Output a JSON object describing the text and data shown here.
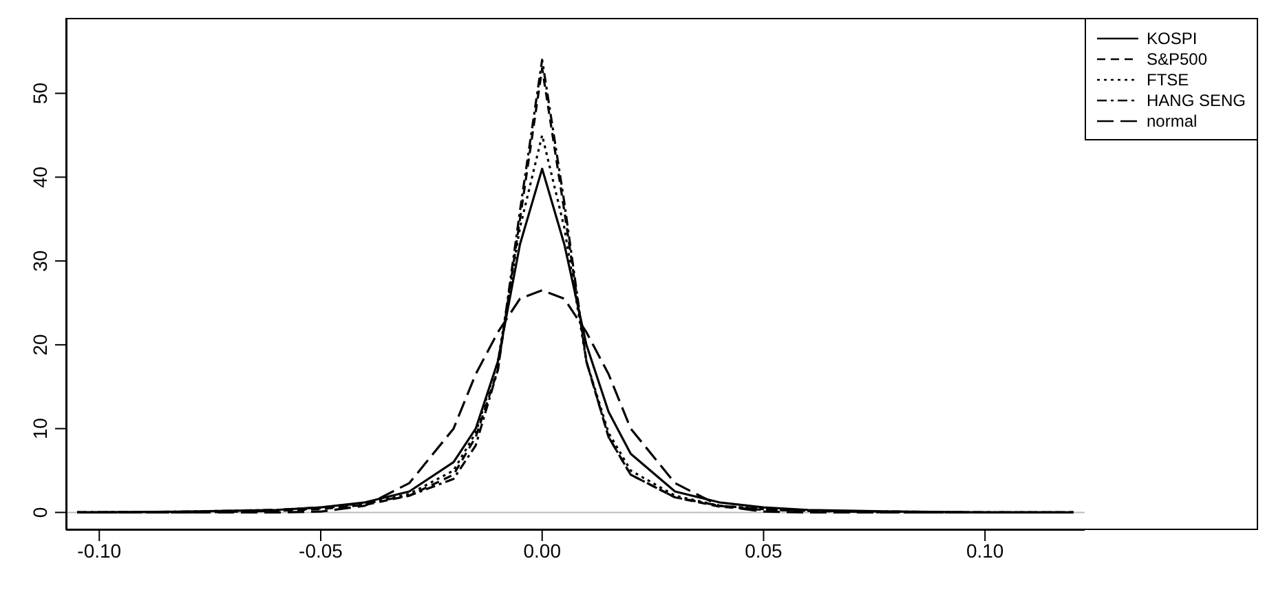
{
  "chart_data": {
    "type": "line",
    "x": [
      -0.105,
      -0.08,
      -0.06,
      -0.05,
      -0.04,
      -0.03,
      -0.02,
      -0.015,
      -0.01,
      -0.005,
      0,
      0.005,
      0.01,
      0.015,
      0.02,
      0.03,
      0.04,
      0.05,
      0.06,
      0.08,
      0.1,
      0.12
    ],
    "series": [
      {
        "name": "KOSPI",
        "color": "#000000",
        "line_style": "solid",
        "values": [
          0,
          0.1,
          0.3,
          0.6,
          1.2,
          2.5,
          6,
          10,
          18,
          32,
          41,
          32,
          20,
          12,
          7,
          2.5,
          1.2,
          0.6,
          0.3,
          0.1,
          0,
          0
        ]
      },
      {
        "name": "S&P500",
        "color": "#000000",
        "line_style": "dashed",
        "values": [
          0,
          0,
          0.2,
          0.4,
          0.9,
          2,
          4.5,
          9,
          17,
          35,
          53,
          36,
          18,
          9,
          4.5,
          1.8,
          0.7,
          0.3,
          0.2,
          0,
          0,
          0
        ]
      },
      {
        "name": "FTSE",
        "color": "#000000",
        "line_style": "dotted",
        "values": [
          0,
          0,
          0.2,
          0.5,
          1,
          2.2,
          5,
          9.5,
          18,
          34,
          45,
          34,
          18,
          9.5,
          5,
          2,
          0.8,
          0.4,
          0.2,
          0,
          0,
          0
        ]
      },
      {
        "name": "HANG SENG",
        "color": "#000000",
        "line_style": "dashdot",
        "values": [
          0,
          0.1,
          0.3,
          0.6,
          1.1,
          2,
          4,
          8,
          17,
          36,
          54,
          37,
          18,
          9,
          4.5,
          1.8,
          0.8,
          0.4,
          0.2,
          0.1,
          0,
          0
        ]
      },
      {
        "name": "normal",
        "color": "#000000",
        "line_style": "longdash",
        "values": [
          0,
          0,
          0,
          0.1,
          0.8,
          3.5,
          10,
          16.5,
          21.5,
          25.5,
          26.5,
          25.5,
          21.5,
          16.5,
          10,
          3.5,
          0.8,
          0.1,
          0,
          0,
          0,
          0
        ]
      }
    ],
    "xlim": [
      -0.1075,
      0.1225
    ],
    "xticks": [
      {
        "value": -0.1,
        "label": "-0.10"
      },
      {
        "value": -0.05,
        "label": "-0.05"
      },
      {
        "value": 0,
        "label": "0.00"
      },
      {
        "value": 0.05,
        "label": "0.05"
      },
      {
        "value": 0.1,
        "label": "0.10"
      }
    ],
    "ylim": [
      -2.1,
      59
    ],
    "yticks": [
      0,
      10,
      20,
      30,
      40,
      50
    ],
    "ref_lines": [
      {
        "axis": "y",
        "value": 0,
        "color": "#bbbbbb"
      }
    ],
    "grid": false,
    "legend": "top right",
    "marker": "none"
  }
}
